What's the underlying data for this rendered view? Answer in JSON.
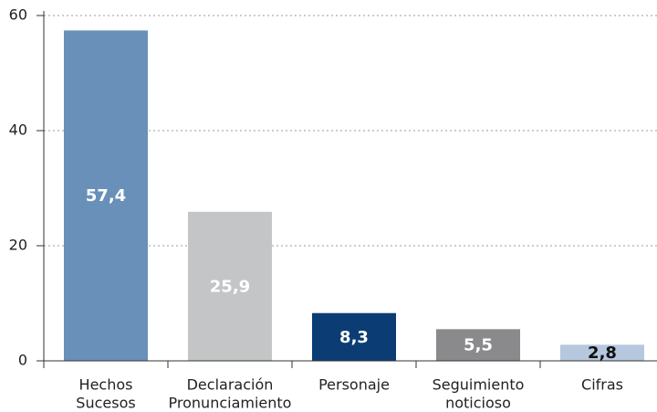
{
  "chart_data": {
    "type": "bar",
    "categories": [
      [
        "Hechos",
        "Sucesos"
      ],
      [
        "Declaración",
        "Pronunciamiento"
      ],
      [
        "Personaje"
      ],
      [
        "Seguimiento",
        "noticioso"
      ],
      [
        "Cifras"
      ]
    ],
    "values": [
      57.4,
      25.9,
      8.3,
      5.5,
      2.8
    ],
    "value_labels": [
      "57,4",
      "25,9",
      "8,3",
      "5,5",
      "2,8"
    ],
    "colors": [
      "#6990b8",
      "#c4c5c7",
      "#0b3d74",
      "#8a8a8c",
      "#b5c8de"
    ],
    "value_label_colors": [
      "#ffffff",
      "#ffffff",
      "#ffffff",
      "#ffffff",
      "#111111"
    ],
    "ylim": [
      0,
      60
    ],
    "yticks": [
      0,
      20,
      40,
      60
    ],
    "grid": true
  }
}
